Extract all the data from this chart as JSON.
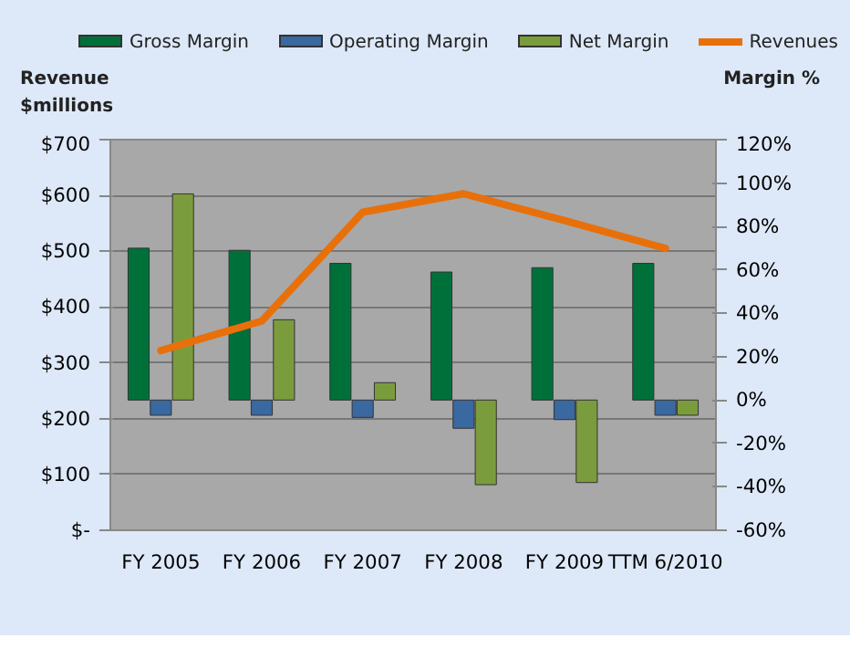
{
  "chart_data": {
    "type": "bar",
    "categories": [
      "FY 2005",
      "FY 2006",
      "FY 2007",
      "FY 2008",
      "FY 2009",
      "TTM 6/2010"
    ],
    "series": [
      {
        "name": "Gross Margin",
        "color": "#00703a",
        "axis": "y2",
        "values": [
          70,
          69,
          63,
          59,
          61,
          63
        ]
      },
      {
        "name": "Operating Margin",
        "color": "#3a68a0",
        "axis": "y2",
        "values": [
          -7,
          -7,
          -8,
          -13,
          -9,
          -7
        ]
      },
      {
        "name": "Net Margin",
        "color": "#7b9c3c",
        "axis": "y2",
        "values": [
          95,
          37,
          8,
          -39,
          -38,
          -7
        ]
      },
      {
        "name": "Revenues",
        "type": "line",
        "color": "#e8700a",
        "values": [
          322,
          375,
          570,
          603,
          555,
          505
        ]
      }
    ],
    "ylabel": "Revenue $millions",
    "y2label": "Margin %",
    "ylim": [
      0,
      700
    ],
    "yticks": [
      {
        "value": 0,
        "label": "$-"
      },
      {
        "value": 100,
        "label": "$100"
      },
      {
        "value": 200,
        "label": "$200"
      },
      {
        "value": 300,
        "label": "$300"
      },
      {
        "value": 400,
        "label": "$400"
      },
      {
        "value": 500,
        "label": "$500"
      },
      {
        "value": 600,
        "label": "$600"
      },
      {
        "value": 700,
        "label": "$700"
      }
    ],
    "y2lim": [
      -60,
      120
    ],
    "y2ticks": [
      {
        "value": -60,
        "label": "-60%"
      },
      {
        "value": -40,
        "label": "-40%"
      },
      {
        "value": -20,
        "label": "-20%"
      },
      {
        "value": 0,
        "label": "0%"
      },
      {
        "value": 20,
        "label": "20%"
      },
      {
        "value": 40,
        "label": "40%"
      },
      {
        "value": 60,
        "label": "60%"
      },
      {
        "value": 80,
        "label": "80%"
      },
      {
        "value": 100,
        "label": "100%"
      },
      {
        "value": 120,
        "label": "120%"
      }
    ],
    "grid": "y",
    "legend": "top",
    "line_style": "solid",
    "marker": "none"
  }
}
